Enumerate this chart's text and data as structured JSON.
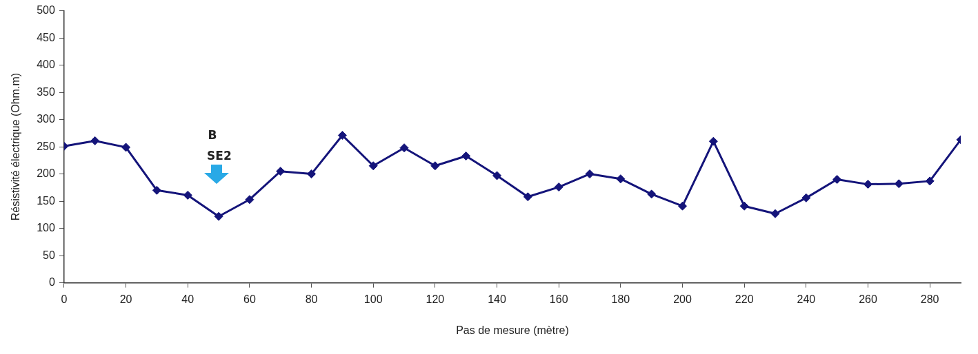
{
  "chart_data": {
    "type": "line",
    "xlabel": "Pas de mesure (mètre)",
    "ylabel": "Résistivité électrique (Ohm.m)",
    "x": [
      0,
      10,
      20,
      30,
      40,
      50,
      60,
      70,
      80,
      90,
      100,
      110,
      120,
      130,
      140,
      150,
      160,
      170,
      180,
      190,
      200,
      210,
      220,
      230,
      240,
      250,
      260,
      270,
      280,
      290
    ],
    "series": [
      {
        "color": "#14147a",
        "values": [
          251,
          261,
          249,
          170,
          161,
          122,
          153,
          205,
          200,
          271,
          215,
          248,
          215,
          233,
          197,
          158,
          176,
          200,
          191,
          163,
          141,
          260,
          141,
          127,
          156,
          190,
          181,
          182,
          187,
          263
        ]
      }
    ],
    "xlim": [
      0,
      290
    ],
    "xticks": [
      0,
      20,
      40,
      60,
      80,
      100,
      120,
      140,
      160,
      180,
      200,
      220,
      240,
      260,
      280
    ],
    "ylim": [
      0,
      500
    ],
    "yticks": [
      0,
      50,
      100,
      150,
      200,
      250,
      300,
      350,
      400,
      450,
      500
    ],
    "grid": false,
    "legend": false,
    "marker": "diamond",
    "line_style": "solid",
    "annotations": [
      "B",
      "SE2"
    ]
  }
}
